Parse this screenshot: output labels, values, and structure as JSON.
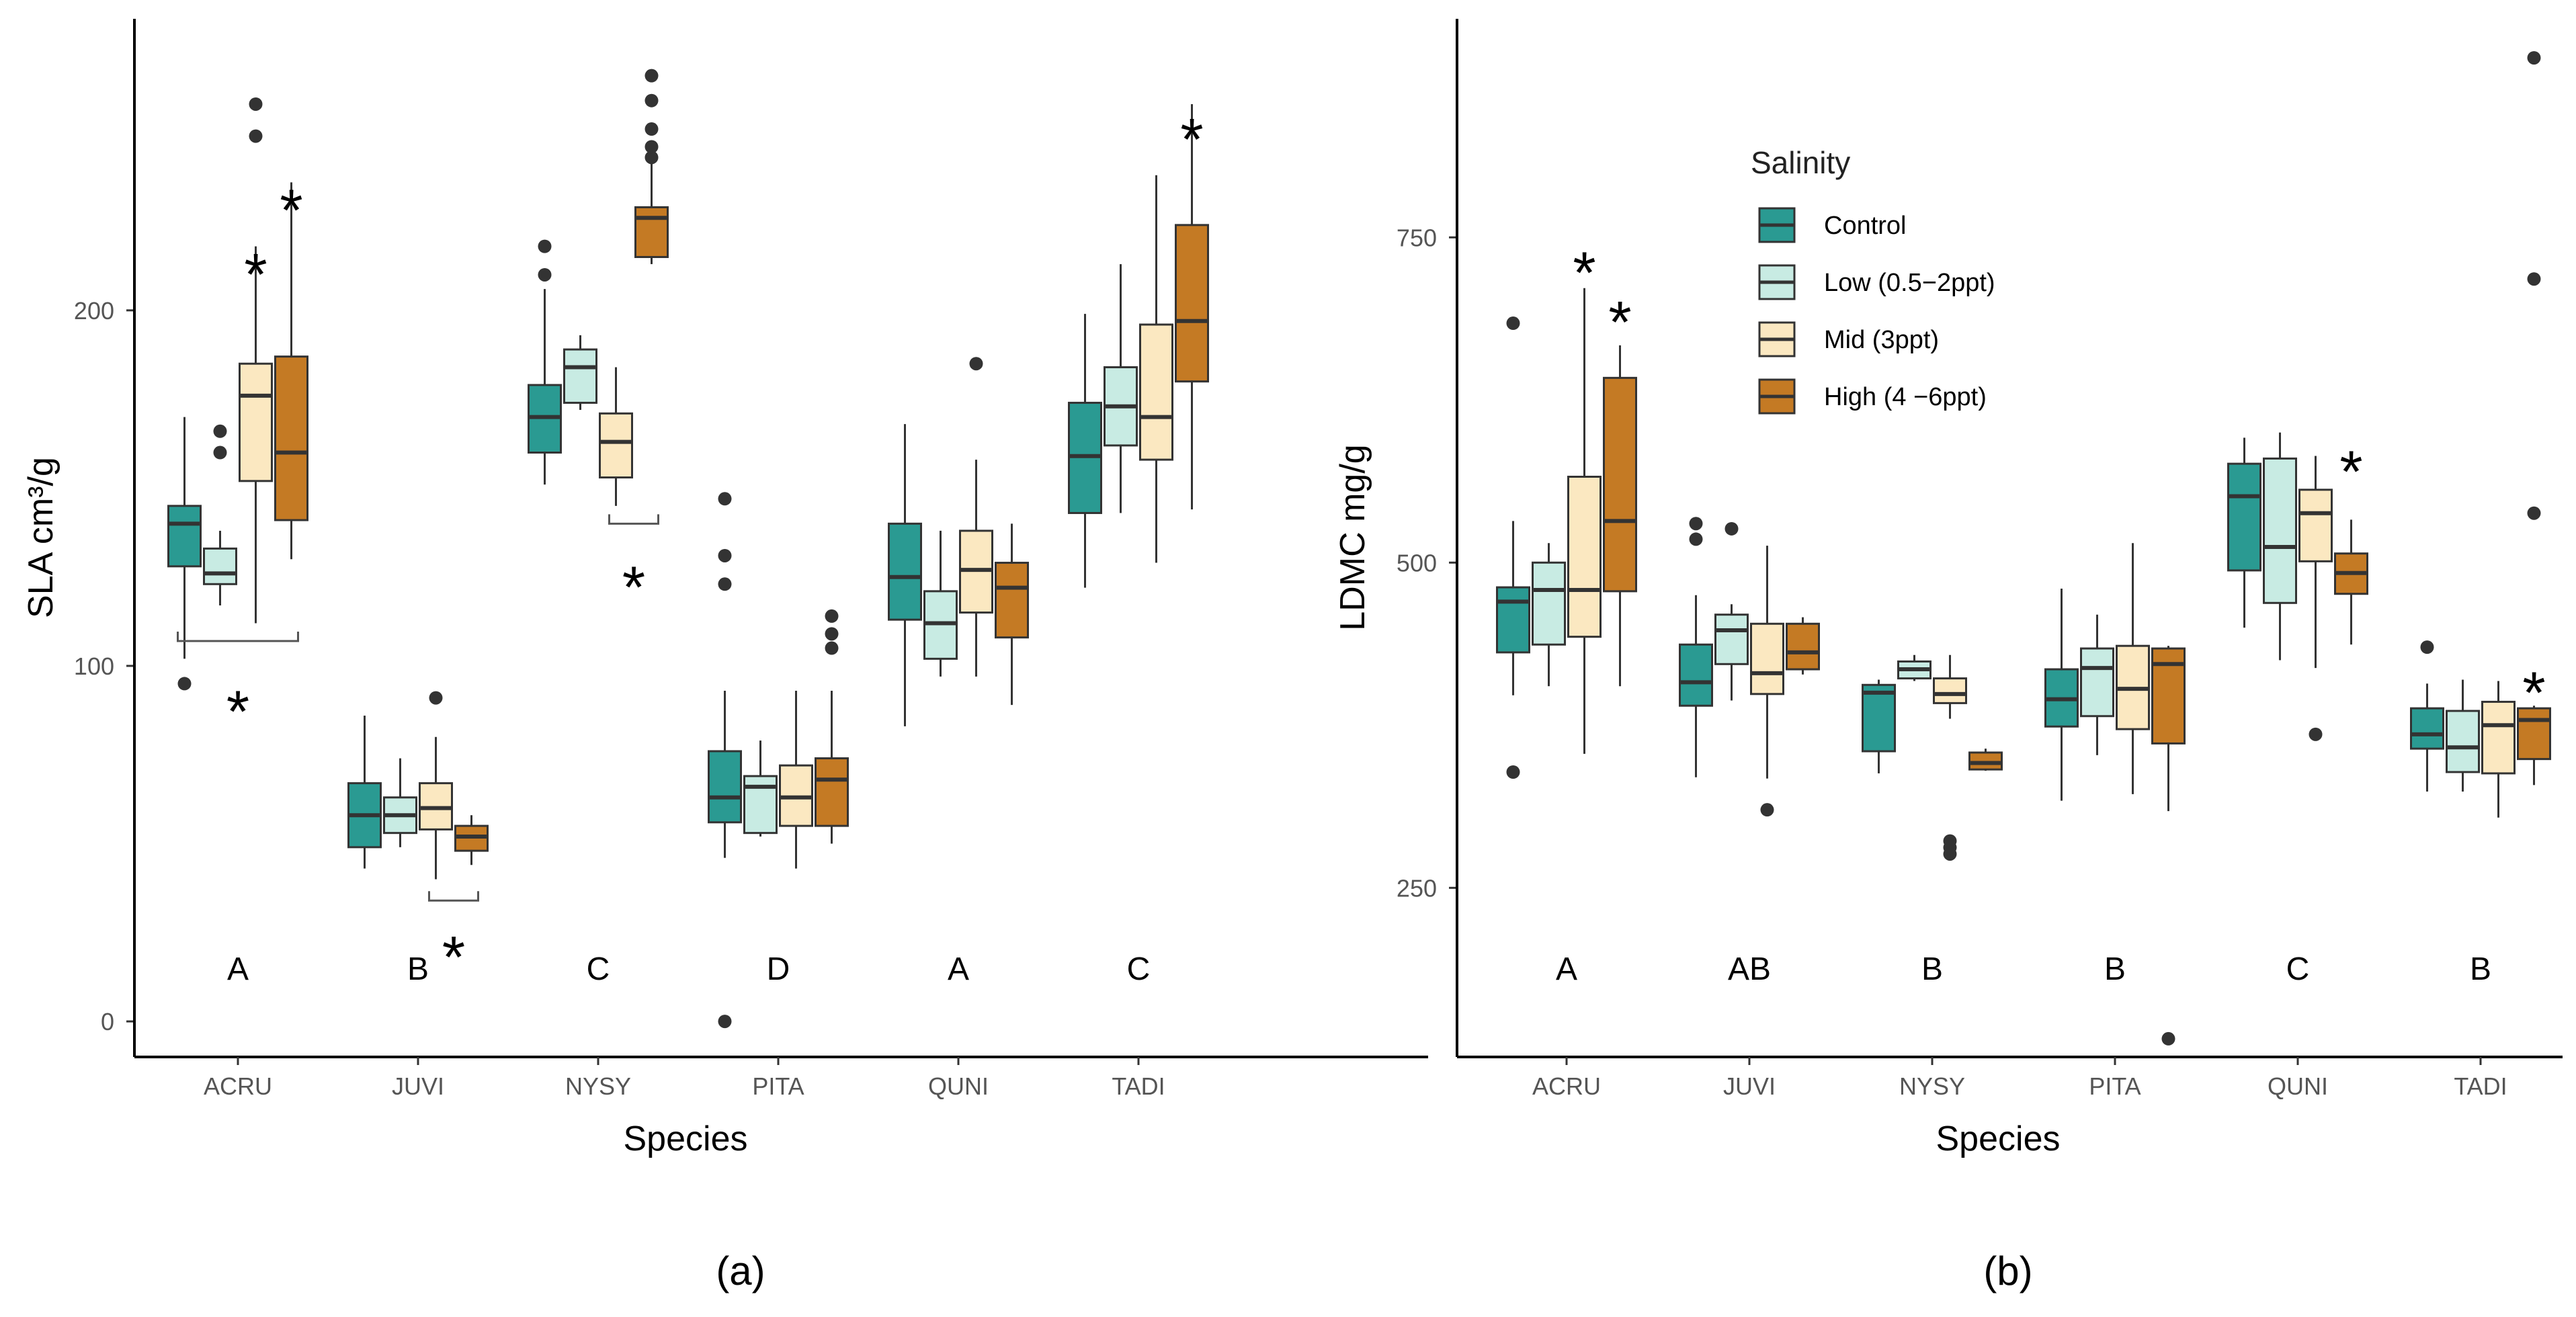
{
  "legend": {
    "title": "Salinity",
    "items": [
      {
        "label": "Control",
        "color": "#2a9a92"
      },
      {
        "label": "Low (0.5−2ppt)",
        "color": "#c8ebe3"
      },
      {
        "label": "Mid (3ppt)",
        "color": "#fbe8c1"
      },
      {
        "label": "High (4 −6ppt)",
        "color": "#c47a24"
      }
    ]
  },
  "chart_data": [
    {
      "type": "boxplot",
      "panel_label": "(a)",
      "xlabel": "Species",
      "ylabel": "SLA cm³/g",
      "ylim": [
        -10,
        282
      ],
      "yticks": [
        0,
        100,
        200
      ],
      "categories": [
        "ACRU",
        "JUVI",
        "NYSY",
        "PITA",
        "QUNI",
        "TADI"
      ],
      "group_letters": [
        "A",
        "B",
        "C",
        "D",
        "A",
        "C"
      ],
      "series": [
        {
          "name": "Control",
          "boxes": [
            {
              "min": 102,
              "q1": 128,
              "median": 140,
              "q3": 145,
              "max": 170,
              "outliers": [
                95
              ]
            },
            {
              "min": 43,
              "q1": 49,
              "median": 58,
              "q3": 67,
              "max": 86,
              "outliers": []
            },
            {
              "min": 151,
              "q1": 160,
              "median": 170,
              "q3": 179,
              "max": 206,
              "outliers": [
                210,
                218
              ]
            },
            {
              "min": 46,
              "q1": 56,
              "median": 63,
              "q3": 76,
              "max": 93,
              "outliers": [
                0,
                123,
                131,
                147
              ]
            },
            {
              "min": 83,
              "q1": 113,
              "median": 125,
              "q3": 140,
              "max": 168,
              "outliers": []
            },
            {
              "min": 122,
              "q1": 143,
              "median": 159,
              "q3": 174,
              "max": 199,
              "outliers": []
            }
          ]
        },
        {
          "name": "Low (0.5−2ppt)",
          "boxes": [
            {
              "min": 117,
              "q1": 123,
              "median": 126,
              "q3": 133,
              "max": 138,
              "outliers": [
                160,
                166
              ]
            },
            {
              "min": 49,
              "q1": 53,
              "median": 58,
              "q3": 63,
              "max": 74,
              "outliers": []
            },
            {
              "min": 172,
              "q1": 174,
              "median": 184,
              "q3": 189,
              "max": 193,
              "outliers": []
            },
            {
              "min": 52,
              "q1": 53,
              "median": 66,
              "q3": 69,
              "max": 79,
              "outliers": []
            },
            {
              "min": 97,
              "q1": 102,
              "median": 112,
              "q3": 121,
              "max": 138,
              "outliers": []
            },
            {
              "min": 143,
              "q1": 162,
              "median": 173,
              "q3": 184,
              "max": 213,
              "outliers": []
            }
          ]
        },
        {
          "name": "Mid (3ppt)",
          "boxes": [
            {
              "min": 112,
              "q1": 152,
              "median": 176,
              "q3": 185,
              "max": 218,
              "outliers": [
                249,
                258
              ]
            },
            {
              "min": 40,
              "q1": 54,
              "median": 60,
              "q3": 67,
              "max": 80,
              "outliers": [
                91
              ]
            },
            {
              "min": 145,
              "q1": 153,
              "median": 163,
              "q3": 171,
              "max": 184,
              "outliers": []
            },
            {
              "min": 43,
              "q1": 55,
              "median": 63,
              "q3": 72,
              "max": 93,
              "outliers": []
            },
            {
              "min": 97,
              "q1": 115,
              "median": 127,
              "q3": 138,
              "max": 158,
              "outliers": [
                185
              ]
            },
            {
              "min": 129,
              "q1": 158,
              "median": 170,
              "q3": 196,
              "max": 238,
              "outliers": []
            }
          ]
        },
        {
          "name": "High (4 −6ppt)",
          "boxes": [
            {
              "min": 130,
              "q1": 141,
              "median": 160,
              "q3": 187,
              "max": 236,
              "outliers": []
            },
            {
              "min": 44,
              "q1": 48,
              "median": 52,
              "q3": 55,
              "max": 58,
              "outliers": []
            },
            {
              "min": 213,
              "q1": 215,
              "median": 226,
              "q3": 229,
              "max": 244,
              "outliers": [
                243,
                246,
                251,
                259,
                266
              ]
            },
            {
              "min": 50,
              "q1": 55,
              "median": 68,
              "q3": 74,
              "max": 93,
              "outliers": [
                105,
                109,
                114
              ]
            },
            {
              "min": 89,
              "q1": 108,
              "median": 122,
              "q3": 129,
              "max": 140,
              "outliers": []
            },
            {
              "min": 144,
              "q1": 180,
              "median": 197,
              "q3": 224,
              "max": 258,
              "outliers": []
            }
          ]
        }
      ],
      "annotations": [
        {
          "text": "*",
          "category": "ACRU",
          "group": 2,
          "y": 212
        },
        {
          "text": "*",
          "category": "ACRU",
          "group": 3,
          "y": 230
        },
        {
          "text": "*",
          "category": "ACRU",
          "group": 1.5,
          "y": 89,
          "bracket_y": 107,
          "bracket_groups": [
            0,
            3
          ]
        },
        {
          "text": "*",
          "category": "JUVI",
          "group": 2.5,
          "y": 20,
          "bracket_y": 34,
          "bracket_groups": [
            2,
            3
          ]
        },
        {
          "text": "*",
          "category": "NYSY",
          "group": 2.5,
          "y": 124,
          "bracket_y": 140,
          "bracket_groups": [
            2,
            3
          ]
        },
        {
          "text": "*",
          "category": "TADI",
          "group": 3,
          "y": 250
        }
      ]
    },
    {
      "type": "boxplot",
      "panel_label": "(b)",
      "xlabel": "Species",
      "ylabel": "LDMC mg/g",
      "ylim": [
        120,
        918
      ],
      "yticks": [
        250,
        500,
        750
      ],
      "categories": [
        "ACRU",
        "JUVI",
        "NYSY",
        "PITA",
        "QUNI",
        "TADI"
      ],
      "group_letters": [
        "A",
        "AB",
        "B",
        "B",
        "C",
        "B"
      ],
      "series": [
        {
          "name": "Control",
          "boxes": [
            {
              "min": 398,
              "q1": 431,
              "median": 470,
              "q3": 481,
              "max": 532,
              "outliers": [
                339,
                684
              ]
            },
            {
              "min": 335,
              "q1": 390,
              "median": 408,
              "q3": 437,
              "max": 475,
              "outliers": [
                518,
                530
              ]
            },
            {
              "min": 338,
              "q1": 355,
              "median": 400,
              "q3": 406,
              "max": 410,
              "outliers": []
            },
            {
              "min": 317,
              "q1": 374,
              "median": 395,
              "q3": 418,
              "max": 480,
              "outliers": []
            },
            {
              "min": 450,
              "q1": 494,
              "median": 551,
              "q3": 576,
              "max": 596,
              "outliers": []
            },
            {
              "min": 324,
              "q1": 357,
              "median": 368,
              "q3": 388,
              "max": 407,
              "outliers": [
                435
              ]
            }
          ]
        },
        {
          "name": "Low (0.5−2ppt)",
          "boxes": [
            {
              "min": 405,
              "q1": 437,
              "median": 479,
              "q3": 500,
              "max": 515,
              "outliers": []
            },
            {
              "min": 394,
              "q1": 422,
              "median": 448,
              "q3": 460,
              "max": 468,
              "outliers": [
                526
              ]
            },
            {
              "min": 409,
              "q1": 411,
              "median": 418,
              "q3": 424,
              "max": 429,
              "outliers": []
            },
            {
              "min": 352,
              "q1": 382,
              "median": 419,
              "q3": 434,
              "max": 460,
              "outliers": []
            },
            {
              "min": 425,
              "q1": 469,
              "median": 512,
              "q3": 580,
              "max": 600,
              "outliers": []
            },
            {
              "min": 324,
              "q1": 339,
              "median": 358,
              "q3": 386,
              "max": 410,
              "outliers": []
            }
          ]
        },
        {
          "name": "Mid (3ppt)",
          "boxes": [
            {
              "min": 353,
              "q1": 443,
              "median": 479,
              "q3": 566,
              "max": 711,
              "outliers": []
            },
            {
              "min": 334,
              "q1": 399,
              "median": 415,
              "q3": 453,
              "max": 513,
              "outliers": [
                310
              ]
            },
            {
              "min": 380,
              "q1": 392,
              "median": 399,
              "q3": 411,
              "max": 429,
              "outliers": [
                276,
                281,
                286
              ]
            },
            {
              "min": 322,
              "q1": 372,
              "median": 403,
              "q3": 436,
              "max": 515,
              "outliers": []
            },
            {
              "min": 419,
              "q1": 501,
              "median": 538,
              "q3": 556,
              "max": 582,
              "outliers": [
                368
              ]
            },
            {
              "min": 304,
              "q1": 338,
              "median": 375,
              "q3": 393,
              "max": 409,
              "outliers": []
            }
          ]
        },
        {
          "name": "High (4 −6ppt)",
          "boxes": [
            {
              "min": 405,
              "q1": 478,
              "median": 532,
              "q3": 642,
              "max": 667,
              "outliers": []
            },
            {
              "min": 414,
              "q1": 418,
              "median": 431,
              "q3": 453,
              "max": 458,
              "outliers": []
            },
            {
              "min": 340,
              "q1": 341,
              "median": 346,
              "q3": 354,
              "max": 357,
              "outliers": []
            },
            {
              "min": 309,
              "q1": 361,
              "median": 422,
              "q3": 434,
              "max": 436,
              "outliers": [
                134
              ]
            },
            {
              "min": 437,
              "q1": 476,
              "median": 492,
              "q3": 507,
              "max": 533,
              "outliers": []
            },
            {
              "min": 329,
              "q1": 349,
              "median": 379,
              "q3": 388,
              "max": 390,
              "outliers": [
                538,
                718,
                888
              ]
            }
          ]
        }
      ],
      "annotations": [
        {
          "text": "*",
          "category": "ACRU",
          "group": 2,
          "y": 728
        },
        {
          "text": "*",
          "category": "ACRU",
          "group": 3,
          "y": 690
        },
        {
          "text": "*",
          "category": "QUNI",
          "group": 3,
          "y": 575
        },
        {
          "text": "*",
          "category": "TADI",
          "group": 3,
          "y": 405
        }
      ]
    }
  ]
}
